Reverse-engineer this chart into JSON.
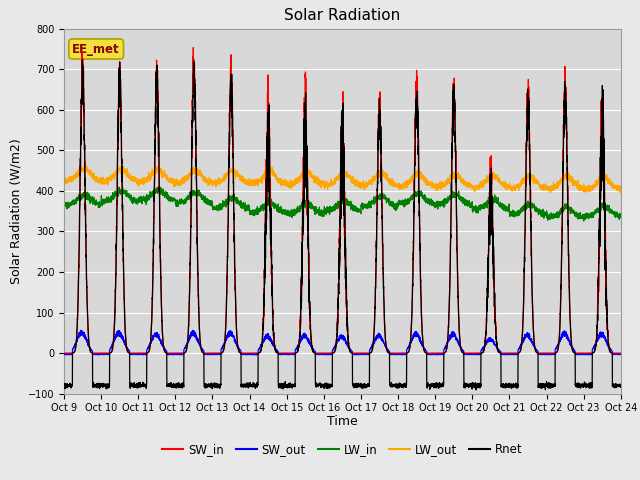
{
  "title": "Solar Radiation",
  "ylabel": "Solar Radiation (W/m2)",
  "xlabel": "Time",
  "ylim": [
    -100,
    800
  ],
  "annotation": "EE_met",
  "fig_facecolor": "#e8e8e8",
  "ax_facecolor": "#d8d8d8",
  "x_tick_labels": [
    "Oct 9",
    "Oct 10",
    "Oct 11",
    "Oct 12",
    "Oct 13",
    "Oct 14",
    "Oct 15",
    "Oct 16",
    "Oct 17",
    "Oct 18",
    "Oct 19",
    "Oct 20",
    "Oct 21",
    "Oct 22",
    "Oct 23",
    "Oct 24"
  ],
  "legend_entries": [
    "SW_in",
    "SW_out",
    "LW_in",
    "LW_out",
    "Rnet"
  ],
  "legend_colors": [
    "red",
    "blue",
    "green",
    "orange",
    "black"
  ],
  "n_days": 15,
  "pts_per_day": 288,
  "sw_peaks": [
    760,
    750,
    750,
    780,
    745,
    695,
    700,
    665,
    660,
    705,
    705,
    505,
    690,
    715,
    720
  ],
  "rnet_night": -80,
  "lw_in_base": 360,
  "lw_out_base": 420,
  "sw_out_peak": 50,
  "title_fontsize": 11,
  "tick_fontsize": 7,
  "label_fontsize": 9
}
